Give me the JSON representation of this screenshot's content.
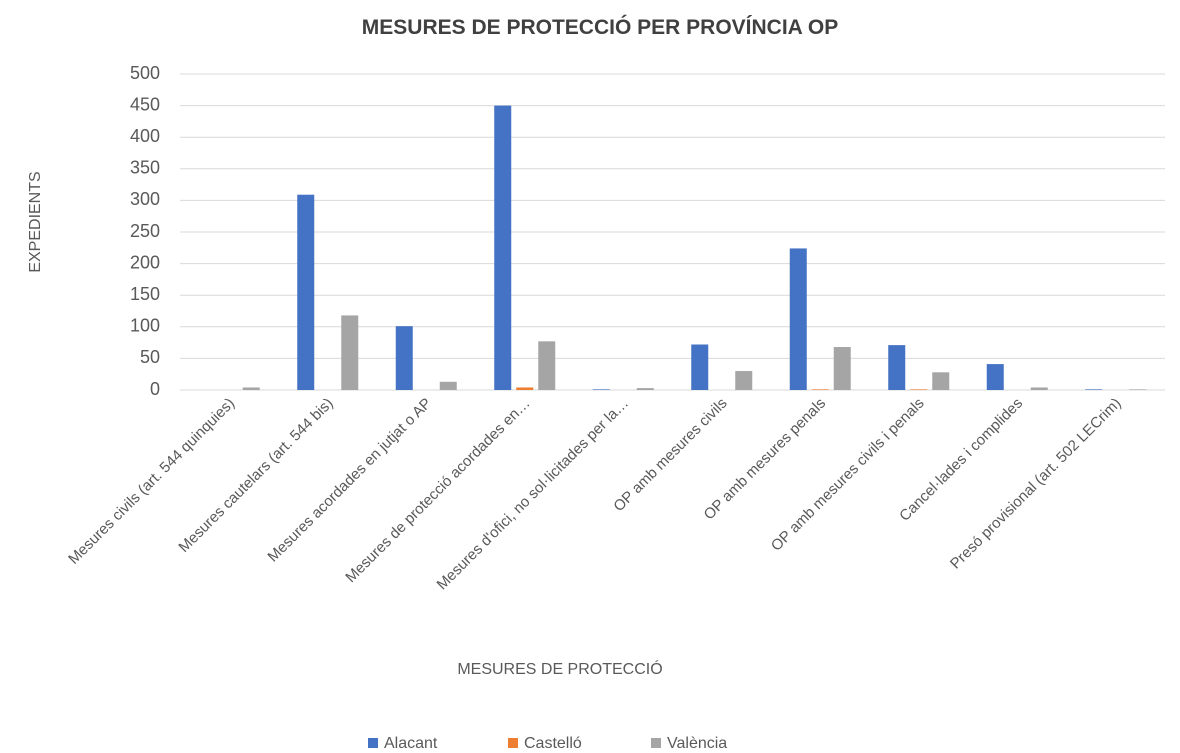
{
  "chart_data": {
    "type": "bar",
    "title": "MESURES DE PROTECCIÓ PER PROVÍNCIA OP",
    "x_label": "MESURES DE PROTECCIÓ",
    "y_label": "EXPEDIENTS",
    "categories": [
      "Mesures civils (art. 544 quinquies)",
      "Mesures cautelars (art. 544 bis)",
      "Mesures acordades en jutjat o AP",
      "Mesures de protecció acordades en…",
      "Mesures d'ofici, no sol·licitades per la…",
      "OP amb mesures civils",
      "OP amb mesures penals",
      "OP amb mesures civils i penals",
      "Cancel·lades i complides",
      "Presó provisional (art. 502 LECrim)"
    ],
    "series": [
      {
        "name": "Alacant",
        "color": "#4472c4",
        "values": [
          0,
          309,
          101,
          450,
          1,
          72,
          224,
          71,
          41,
          1
        ]
      },
      {
        "name": "Castelló",
        "color": "#ed7d31",
        "values": [
          0,
          0,
          0,
          4,
          0,
          0,
          1,
          1,
          0,
          0
        ]
      },
      {
        "name": "València",
        "color": "#a5a5a5",
        "values": [
          4,
          118,
          13,
          77,
          3,
          30,
          68,
          28,
          4,
          1
        ]
      }
    ],
    "ylim": [
      0,
      500
    ],
    "yticks": [
      0,
      50,
      100,
      150,
      200,
      250,
      300,
      350,
      400,
      450,
      500
    ],
    "grid": true,
    "legend": "bottom"
  }
}
